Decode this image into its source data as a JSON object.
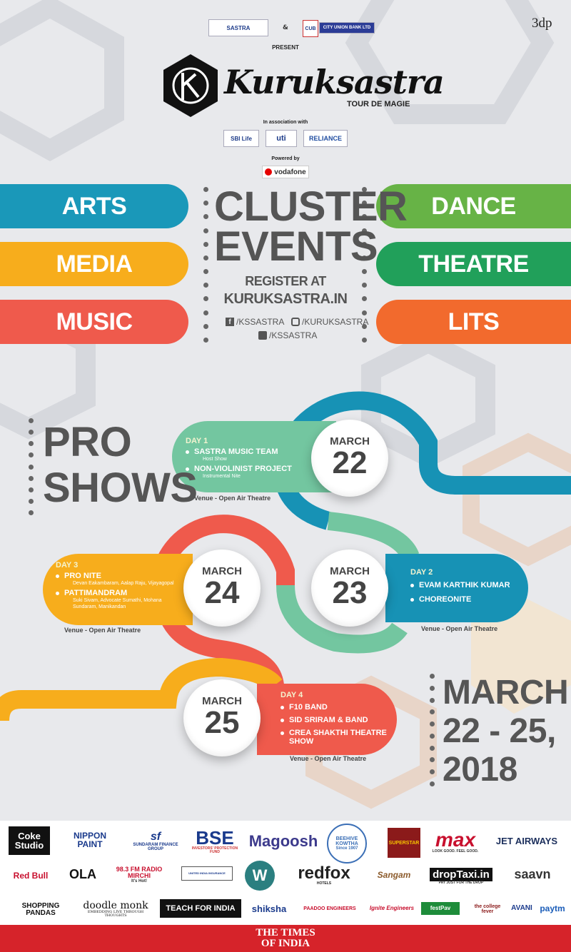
{
  "header": {
    "sastra_logo": "SASTRA",
    "amp": "&",
    "cub_logo": "CITY UNION BANK LTD",
    "cub_short": "CUB",
    "corner_logo": "3dp",
    "present": "PRESENT",
    "event_monogram": "KS",
    "event_name": "Kuruksastra",
    "tagline": "TOUR DE MAGIE",
    "association_label": "In association with",
    "associates": [
      "SBI Life",
      "uti",
      "RELIANCE"
    ],
    "powered_label": "Powered by",
    "powered_by": "vodafone"
  },
  "clusters": {
    "left": [
      "ARTS",
      "MEDIA",
      "MUSIC"
    ],
    "right": [
      "DANCE",
      "THEATRE",
      "LITS"
    ],
    "title_line1": "CLUSTER",
    "title_line2": "EVENTS",
    "register_line": "REGISTER AT",
    "website": "KURUKSASTRA.IN",
    "facebook": "/KSSASTRA",
    "instagram": "/KURUKSASTRA",
    "twitter": "/KSSASTRA"
  },
  "proshows": {
    "title_line1": "PRO",
    "title_line2": "SHOWS",
    "days": {
      "day1": {
        "label": "DAY 1",
        "month": "MARCH",
        "date": "22",
        "items": [
          {
            "title": "SASTRA MUSIC TEAM",
            "sub": "Host Show"
          },
          {
            "title": "NON-VIOLINIST PROJECT",
            "sub": "Instrumental Nite"
          }
        ],
        "venue": "Venue - Open Air Theatre"
      },
      "day2": {
        "label": "DAY 2",
        "month": "MARCH",
        "date": "23",
        "items": [
          {
            "title": "EVAM KARTHIK KUMAR"
          },
          {
            "title": "CHOREONITE"
          }
        ],
        "venue": "Venue - Open Air Theatre"
      },
      "day3": {
        "label": "DAY 3",
        "month": "MARCH",
        "date": "24",
        "items": [
          {
            "title": "PRO NITE",
            "sub": "Devan Eakambaram, Aalap Raju, Vijayagopal"
          },
          {
            "title": "PATTIMANDRAM",
            "sub": "Suki Sivam, Advocate Sumathi, Mohana Sundaram, Manikandan"
          }
        ],
        "venue": "Venue - Open Air Theatre"
      },
      "day4": {
        "label": "DAY 4",
        "month": "MARCH",
        "date": "25",
        "items": [
          {
            "title": "F10 BAND"
          },
          {
            "title": "SID SRIRAM & BAND"
          },
          {
            "title": "CREA SHAKTHI THEATRE SHOW"
          }
        ],
        "venue": "Venue - Open Air Theatre"
      }
    },
    "dates_line1": "MARCH",
    "dates_line2": "22 - 25,",
    "dates_line3": "2018"
  },
  "sponsors": {
    "row1": [
      "Coke Studio",
      "NIPPON PAINT",
      "SUNDARAM FINANCE GROUP",
      "BSE",
      "Magoosh",
      "BEEHIVE KOWTHA",
      "SUPERSTAR",
      "max",
      "JET AIRWAYS"
    ],
    "row1_subs": {
      "bse": "INVESTORS' PROTECTION FUND",
      "max": "LOOK GOOD. FEEL GOOD.",
      "beehive": "Since 1907"
    },
    "row2": [
      "Red Bull",
      "OLA",
      "98.3 FM RADIO MIRCHI",
      "UNITED INDIA INSURANCE",
      "W",
      "redfox",
      "Sangam",
      "dropTaxi.in",
      "saavn"
    ],
    "row2_subs": {
      "droptaxi": "PAY JUST FOR THE DROP",
      "redfox": "HOTELS",
      "mirchi": "It's Hot!"
    },
    "row3": [
      "SHOPPING PANDAS",
      "doodle monk",
      "TEACH FOR INDIA",
      "shiksha",
      "PAADOO ENGINEERS",
      "Ignite Engineers",
      "festPav",
      "the college fever",
      "AVANI",
      "paytm"
    ],
    "row3_subs": {
      "doodle": "EMBEDDING LIVE THROUGH THOUGHTS"
    },
    "footer_line1": "THE TIMES",
    "footer_line2": "OF INDIA"
  },
  "colors": {
    "blue": "#1a98b9",
    "yellow": "#f7ad1c",
    "red": "#ef5a4c",
    "green_light": "#67b346",
    "green_dark": "#21a05a",
    "orange": "#f26a2d",
    "mint": "#73c6a0",
    "teal": "#1792b5",
    "toi_red": "#d6232a"
  }
}
